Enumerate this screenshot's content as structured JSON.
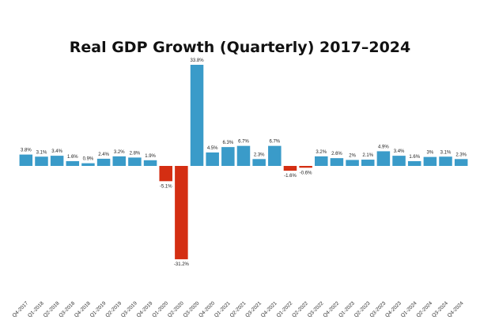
{
  "chart_data": {
    "type": "bar",
    "title": "Real GDP Growth (Quarterly) 2017–2024",
    "xlabel": "",
    "ylabel": "",
    "ylim": [
      -31.2,
      33.8
    ],
    "grid": false,
    "legend": "none",
    "colors": {
      "positive": "#3a9bc9",
      "negative": "#d42e12"
    },
    "categories": [
      "Q4-2017",
      "Q1-2018",
      "Q2-2018",
      "Q3-2018",
      "Q4-2018",
      "Q1-2019",
      "Q2-2019",
      "Q3-2019",
      "Q4-2019",
      "Q1-2020",
      "Q2-2020",
      "Q3-2020",
      "Q4-2020",
      "Q1-2021",
      "Q2-2021",
      "Q3-2021",
      "Q4-2021",
      "Q1-2022",
      "Q2-2022",
      "Q3-2022",
      "Q4-2022",
      "Q1-2023",
      "Q2-2023",
      "Q3-2023",
      "Q4-2023",
      "Q1-2024",
      "Q2-2024",
      "Q3-2024",
      "Q4-2024"
    ],
    "values": [
      3.8,
      3.1,
      3.4,
      1.6,
      0.9,
      2.4,
      3.2,
      2.8,
      1.9,
      -5.1,
      -31.2,
      33.8,
      4.5,
      6.3,
      6.7,
      2.3,
      6.7,
      -1.6,
      -0.6,
      3.2,
      2.6,
      2,
      2.1,
      4.9,
      3.4,
      1.6,
      3,
      3.1,
      2.3
    ],
    "labels": [
      "3.8%",
      "3.1%",
      "3.4%",
      "1.6%",
      "0.9%",
      "2.4%",
      "3.2%",
      "2.8%",
      "1.9%",
      "-5.1%",
      "-31.2%",
      "33.8%",
      "4.5%",
      "6.3%",
      "6.7%",
      "2.3%",
      "6.7%",
      "-1.6%",
      "-0.6%",
      "3.2%",
      "2.6%",
      "2%",
      "2.1%",
      "4.9%",
      "3.4%",
      "1.6%",
      "3%",
      "3.1%",
      "2.3%"
    ]
  }
}
